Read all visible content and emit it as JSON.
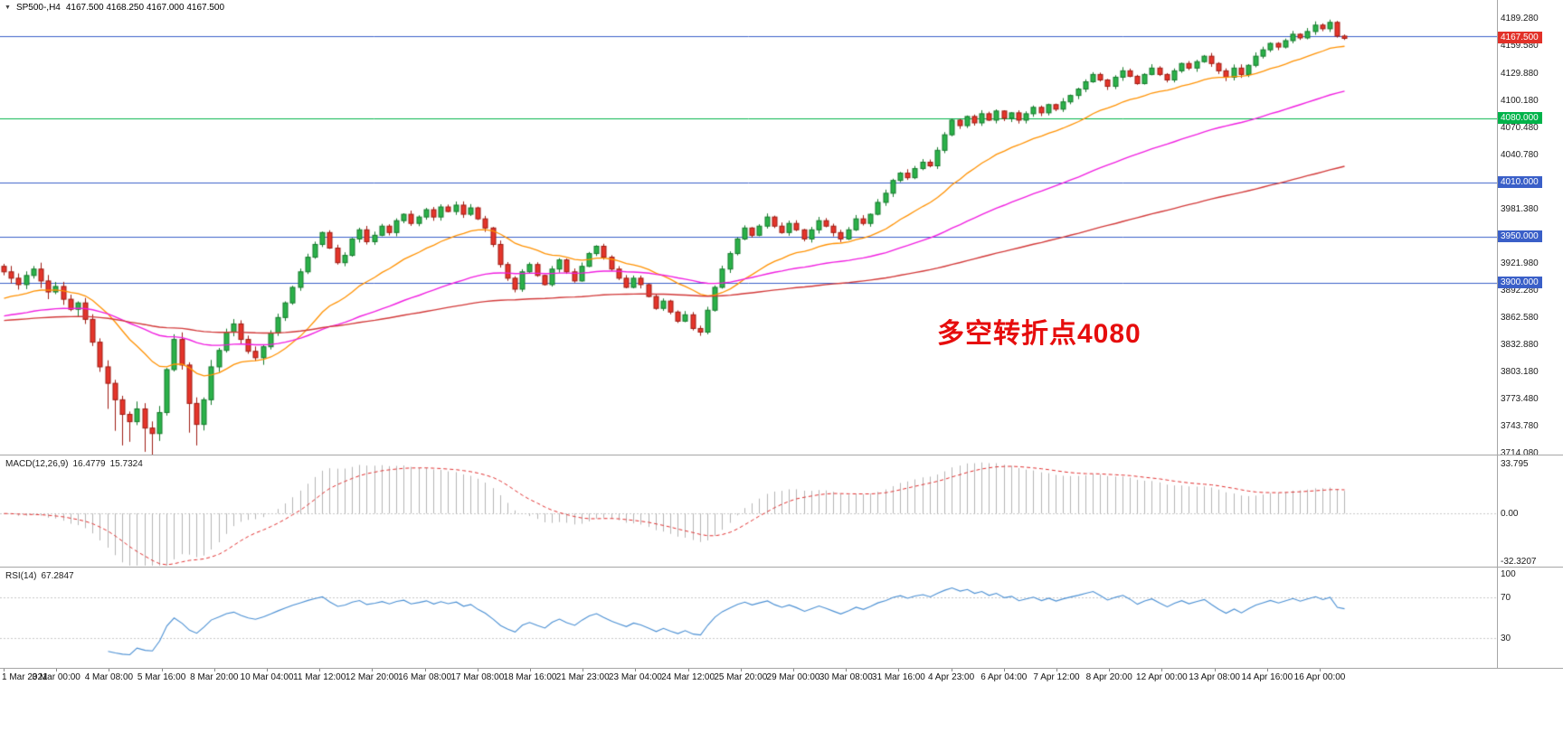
{
  "header": {
    "dropdown_icon": "▼",
    "symbol": "SP500-,H4",
    "ohlc": "4167.500 4168.250 4167.000 4167.500"
  },
  "annotation": {
    "text": "多空转折点4080",
    "color": "#e60d0d"
  },
  "price_axis": {
    "ticks": [
      {
        "v": 4189.28,
        "label": "4189.280"
      },
      {
        "v": 4159.58,
        "label": "4159.580"
      },
      {
        "v": 4129.88,
        "label": "4129.880"
      },
      {
        "v": 4100.18,
        "label": "4100.180"
      },
      {
        "v": 4070.48,
        "label": "4070.480"
      },
      {
        "v": 4040.78,
        "label": "4040.780"
      },
      {
        "v": 3981.38,
        "label": "3981.380"
      },
      {
        "v": 3921.98,
        "label": "3921.980"
      },
      {
        "v": 3892.28,
        "label": "3892.280"
      },
      {
        "v": 3862.58,
        "label": "3862.580"
      },
      {
        "v": 3832.88,
        "label": "3832.880"
      },
      {
        "v": 3803.18,
        "label": "3803.180"
      },
      {
        "v": 3773.48,
        "label": "3773.480"
      },
      {
        "v": 3743.78,
        "label": "3743.780"
      },
      {
        "v": 3714.08,
        "label": "3714.080"
      }
    ],
    "boxes": [
      {
        "v": 4167.5,
        "label": "4167.500",
        "bg": "#e23128"
      },
      {
        "v": 4080.0,
        "label": "4080.000",
        "bg": "#00b34a"
      },
      {
        "v": 4010.0,
        "label": "4010.000",
        "bg": "#3a5fc8"
      },
      {
        "v": 3950.0,
        "label": "3950.000",
        "bg": "#3a5fc8"
      },
      {
        "v": 3900.0,
        "label": "3900.000",
        "bg": "#3a5fc8"
      }
    ]
  },
  "macd": {
    "title": "MACD(12,26,9)",
    "value1": "16.4779",
    "value2": "15.7324",
    "axis": {
      "max": 33.795,
      "min": -32.3207,
      "max_label": "33.795",
      "zero_label": "0.00",
      "min_label": "-32.3207"
    },
    "colors": {
      "histogram": "#b4b4b4",
      "signal": "#e03030",
      "level": "#c8c8c8"
    }
  },
  "rsi": {
    "title": "RSI(14)",
    "value": "67.2847",
    "axis_labels": [
      "100",
      "70",
      "30"
    ],
    "axis_values": [
      100,
      70,
      30
    ],
    "level_lines": [
      70,
      30
    ],
    "colors": {
      "line": "#4a8fd3",
      "level": "#c8c8c8"
    }
  },
  "chart_data": {
    "type": "candlestick",
    "symbol": "SP500-",
    "timeframe": "H4",
    "title": "SP500-,H4",
    "current_ohlc": {
      "open": 4167.5,
      "high": 4168.25,
      "low": 4167.0,
      "close": 4167.5
    },
    "ylim": [
      3711.38,
      4189.28
    ],
    "x_labels": [
      "1 Mar 2021",
      "3 Mar 00:00",
      "4 Mar 08:00",
      "5 Mar 16:00",
      "8 Mar 20:00",
      "10 Mar 04:00",
      "11 Mar 12:00",
      "12 Mar 20:00",
      "16 Mar 08:00",
      "17 Mar 08:00",
      "18 Mar 16:00",
      "21 Mar 23:00",
      "23 Mar 04:00",
      "24 Mar 12:00",
      "25 Mar 20:00",
      "29 Mar 00:00",
      "30 Mar 08:00",
      "31 Mar 16:00",
      "4 Apr 23:00",
      "6 Apr 04:00",
      "7 Apr 12:00",
      "8 Apr 20:00",
      "12 Apr 00:00",
      "13 Apr 08:00",
      "14 Apr 16:00",
      "16 Apr 00:00"
    ],
    "first_open": 3918,
    "closes": [
      3912,
      3905,
      3898,
      3908,
      3915,
      3902,
      3890,
      3896,
      3882,
      3871,
      3878,
      3860,
      3835,
      3808,
      3790,
      3772,
      3756,
      3748,
      3762,
      3741,
      3735,
      3758,
      3805,
      3838,
      3810,
      3768,
      3745,
      3772,
      3808,
      3826,
      3846,
      3855,
      3838,
      3825,
      3818,
      3830,
      3845,
      3862,
      3878,
      3895,
      3912,
      3928,
      3942,
      3955,
      3938,
      3922,
      3930,
      3948,
      3958,
      3945,
      3952,
      3962,
      3955,
      3968,
      3975,
      3965,
      3972,
      3980,
      3972,
      3983,
      3978,
      3985,
      3975,
      3982,
      3970,
      3960,
      3942,
      3920,
      3905,
      3893,
      3912,
      3920,
      3908,
      3898,
      3915,
      3925,
      3912,
      3902,
      3918,
      3932,
      3940,
      3928,
      3915,
      3905,
      3895,
      3905,
      3898,
      3885,
      3872,
      3880,
      3868,
      3858,
      3865,
      3850,
      3846,
      3870,
      3895,
      3915,
      3932,
      3948,
      3960,
      3952,
      3962,
      3972,
      3962,
      3955,
      3965,
      3958,
      3948,
      3958,
      3968,
      3962,
      3955,
      3948,
      3958,
      3970,
      3965,
      3975,
      3988,
      3998,
      4012,
      4020,
      4015,
      4025,
      4032,
      4028,
      4045,
      4062,
      4078,
      4072,
      4082,
      4075,
      4085,
      4078,
      4088,
      4080,
      4086,
      4078,
      4085,
      4092,
      4086,
      4095,
      4090,
      4098,
      4105,
      4112,
      4120,
      4128,
      4122,
      4115,
      4125,
      4132,
      4126,
      4118,
      4128,
      4135,
      4128,
      4122,
      4132,
      4140,
      4135,
      4142,
      4148,
      4140,
      4132,
      4125,
      4135,
      4128,
      4138,
      4148,
      4155,
      4162,
      4158,
      4165,
      4172,
      4168,
      4175,
      4182,
      4178,
      4185,
      4170,
      4167.5
    ],
    "wick_low_overrides": {
      "14": 3762,
      "15": 3738,
      "16": 3722,
      "17": 3726,
      "19": 3715,
      "20": 3712,
      "25": 3736,
      "26": 3722,
      "94": 3842
    },
    "wick_high_overrides": {
      "61": 3989,
      "179": 4188
    },
    "levels": [
      {
        "value": 4170,
        "color": "#3a5fc8"
      },
      {
        "value": 4080,
        "color": "#00b34a"
      },
      {
        "value": 4010,
        "color": "#3a5fc8"
      },
      {
        "value": 3950,
        "color": "#3a5fc8"
      },
      {
        "value": 3900,
        "color": "#3a5fc8"
      }
    ],
    "overlays": [
      {
        "name": "ema-fast",
        "period": 20,
        "seed": 3880,
        "color": "#ff9100"
      },
      {
        "name": "ema-mid",
        "period": 60,
        "seed": 3862,
        "color": "#f01ee0"
      },
      {
        "name": "ema-slow",
        "period": 150,
        "seed": 3858,
        "color": "#d23939"
      }
    ],
    "indicators": {
      "macd": {
        "fast": 12,
        "slow": 26,
        "signal": 9
      },
      "rsi": {
        "period": 14
      }
    },
    "candle_colors": {
      "up": "#2bb14a",
      "up_border": "#157a2b",
      "down": "#e5352b",
      "down_border": "#9e1b12"
    }
  }
}
